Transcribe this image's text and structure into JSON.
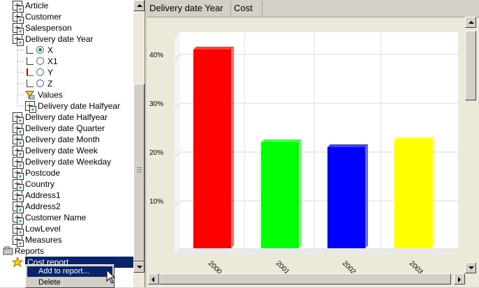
{
  "tree": {
    "items": [
      {
        "label": "Article",
        "icon": "dimension-icon"
      },
      {
        "label": "Customer",
        "icon": "dimension-icon"
      },
      {
        "label": "Salesperson",
        "icon": "dimension-icon"
      },
      {
        "label": "Delivery date Year",
        "icon": "dimension-icon"
      },
      {
        "label": "X",
        "icon": "x-axis-icon",
        "selected": true
      },
      {
        "label": "X1",
        "icon": "x1-axis-icon"
      },
      {
        "label": "Y",
        "icon": "y-axis-icon"
      },
      {
        "label": "Z",
        "icon": "z-axis-icon"
      },
      {
        "label": "Values",
        "icon": "filter-icon"
      },
      {
        "label": "Delivery date Halfyear",
        "icon": "dimension-icon"
      },
      {
        "label": "Delivery date Halfyear",
        "icon": "dimension-icon"
      },
      {
        "label": "Delivery date Quarter",
        "icon": "dimension-icon"
      },
      {
        "label": "Delivery date Month",
        "icon": "dimension-icon"
      },
      {
        "label": "Delivery date Week",
        "icon": "dimension-icon"
      },
      {
        "label": "Delivery date Weekday",
        "icon": "dimension-icon"
      },
      {
        "label": "Postcode",
        "icon": "dimension-icon"
      },
      {
        "label": "Country",
        "icon": "dimension-icon"
      },
      {
        "label": "Address1",
        "icon": "dimension-icon"
      },
      {
        "label": "Address2",
        "icon": "dimension-icon"
      },
      {
        "label": "Customer Name",
        "icon": "dimension-icon"
      },
      {
        "label": "LowLevel",
        "icon": "dimension-icon"
      },
      {
        "label": "Measures",
        "icon": "dimension-icon"
      },
      {
        "label": "Reports",
        "icon": "reports-folder-icon"
      },
      {
        "label": "Cost report",
        "icon": "report-star-icon"
      }
    ]
  },
  "context_menu": {
    "items": [
      "Add to report...",
      "Delete"
    ]
  },
  "header": {
    "cells": [
      "Delivery date Year",
      "Cost"
    ]
  },
  "chart_data": {
    "type": "bar",
    "categories": [
      "2000",
      "2001",
      "2002",
      "2003"
    ],
    "values": [
      41,
      22,
      21,
      22.5
    ],
    "colors": [
      "#ff0000",
      "#00ff00",
      "#0000ff",
      "#ffff00"
    ],
    "ylim": [
      0,
      40
    ],
    "yticks": [
      "10%",
      "20%",
      "30%",
      "40%"
    ],
    "grid": true,
    "style": "3d"
  }
}
